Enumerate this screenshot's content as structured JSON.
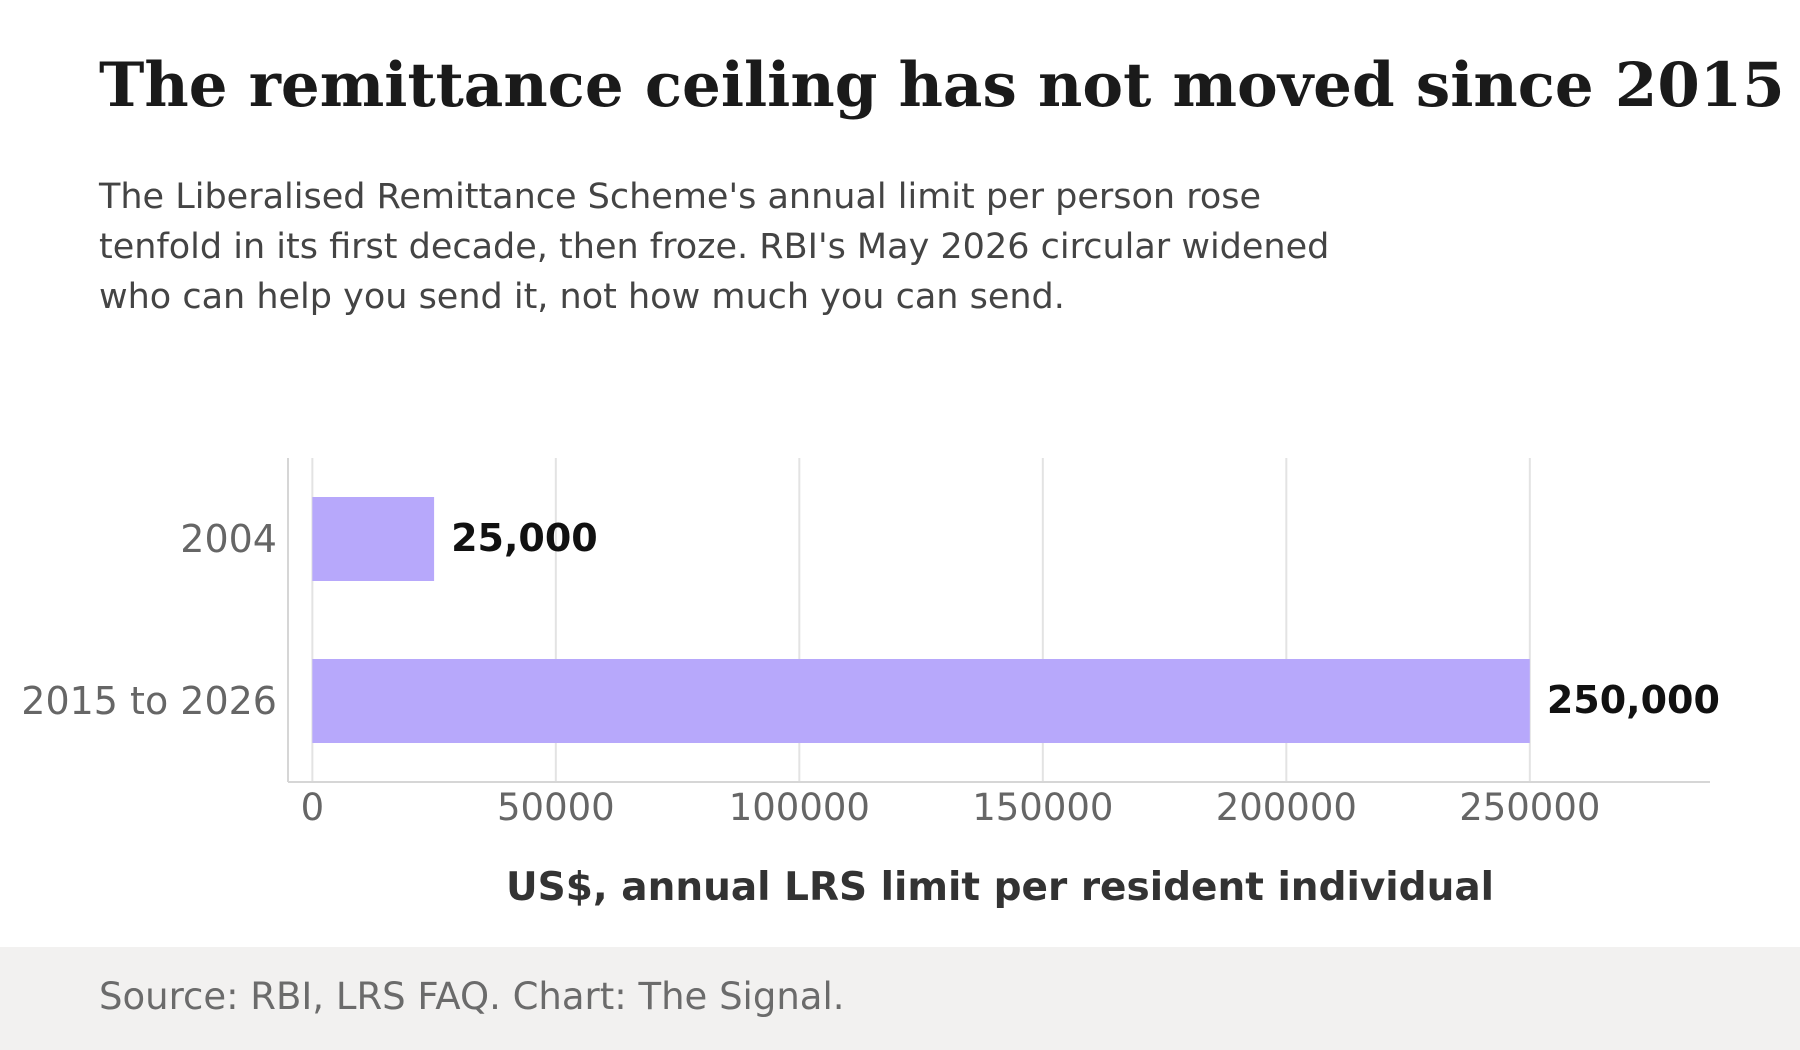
{
  "header": {
    "title": "The remittance ceiling has not moved since 2015",
    "subtitle": "The Liberalised Remittance Scheme's annual limit per person rose tenfold in its first decade, then froze. RBI's May 2026 circular widened who can help you send it, not how much you can send."
  },
  "chart_data": {
    "type": "bar",
    "orientation": "horizontal",
    "categories": [
      "2004",
      "2015 to 2026"
    ],
    "values": [
      25000,
      250000
    ],
    "value_labels": [
      "25,000",
      "250,000"
    ],
    "xlabel": "US$, annual LRS limit per resident individual",
    "ylabel": "",
    "xlim": [
      -5000,
      287000
    ],
    "xticks": [
      0,
      50000,
      100000,
      150000,
      200000,
      250000
    ],
    "xtick_labels": [
      "0",
      "50000",
      "100000",
      "150000",
      "200000",
      "250000"
    ],
    "grid": "vertical",
    "bar_color": "#b7a8fb"
  },
  "footer": {
    "source": "Source: RBI, LRS FAQ. Chart: The Signal."
  }
}
